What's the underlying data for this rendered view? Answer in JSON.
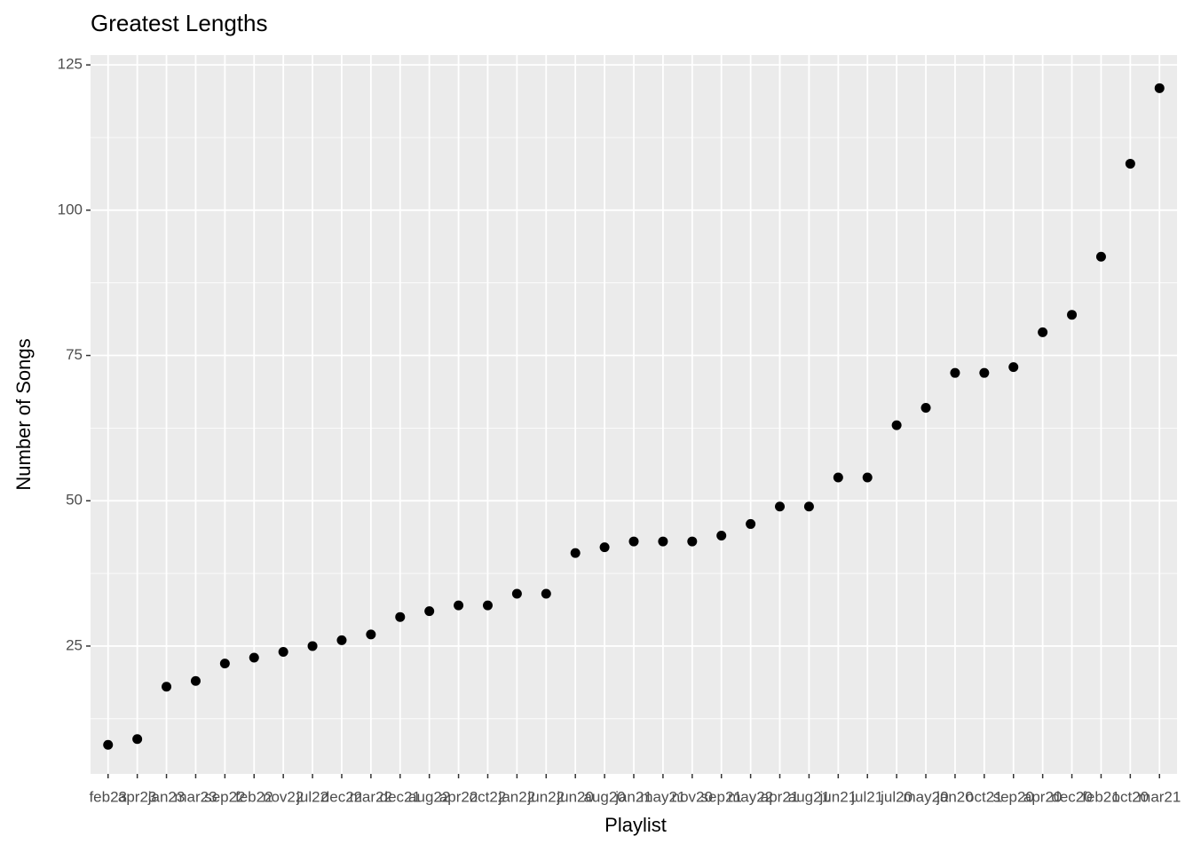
{
  "chart_data": {
    "type": "scatter",
    "title": "Greatest Lengths",
    "x_label": "Playlist",
    "y_label": "Number of Songs",
    "categories": [
      "feb23",
      "apr23",
      "jan23",
      "mar23",
      "sep22",
      "feb22",
      "nov22",
      "jul22",
      "dec22",
      "mar22",
      "dec21",
      "aug22",
      "apr22",
      "oct22",
      "jan22",
      "jun22",
      "jun20",
      "aug20",
      "jan21",
      "may21",
      "nov20",
      "sep21",
      "may22",
      "apr21",
      "aug21",
      "jun21",
      "jul21",
      "jul20",
      "may20",
      "jan20",
      "oct21",
      "sep20",
      "apr20",
      "dec20",
      "feb21",
      "oct20",
      "mar21"
    ],
    "values": [
      8,
      9,
      18,
      19,
      22,
      23,
      24,
      25,
      26,
      27,
      30,
      31,
      32,
      32,
      34,
      34,
      41,
      42,
      43,
      43,
      43,
      44,
      46,
      49,
      49,
      54,
      54,
      63,
      66,
      72,
      72,
      73,
      79,
      82,
      92,
      108,
      121
    ],
    "color": "#000000",
    "ylim": [
      3,
      126.7
    ],
    "yticks": [
      25,
      50,
      75,
      100,
      125
    ],
    "grid": true
  }
}
